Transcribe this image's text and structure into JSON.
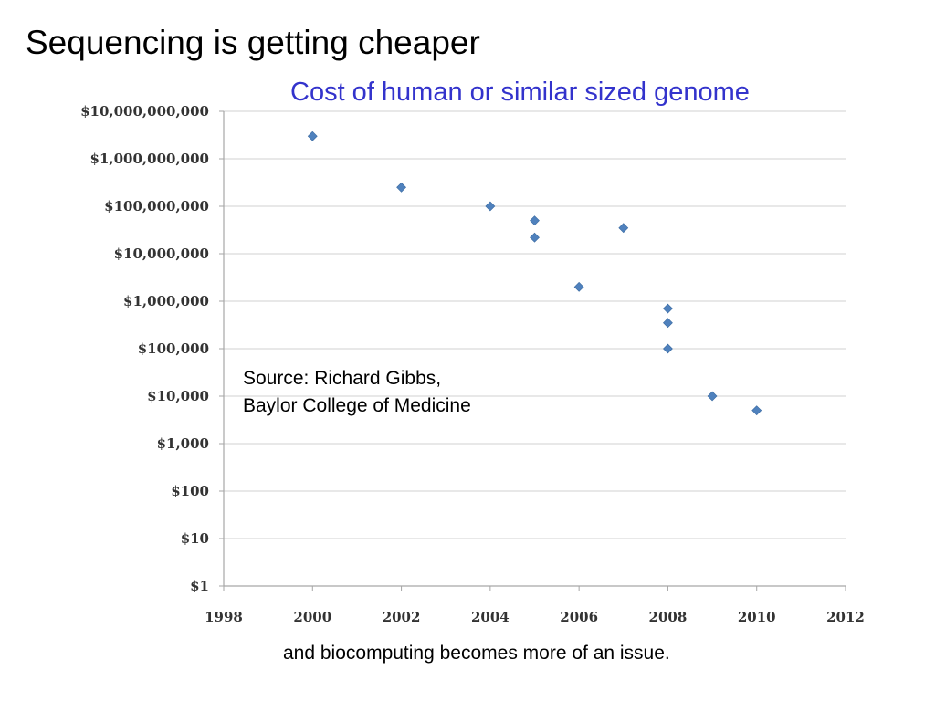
{
  "slide": {
    "title": "Sequencing is getting cheaper",
    "footer": "and biocomputing becomes more of an issue."
  },
  "source": {
    "line1": "Source: Richard Gibbs,",
    "line2": "Baylor College of Medicine"
  },
  "colors": {
    "chart_title": "#3333cc",
    "marker": "#4f81bd",
    "grid": "#d9d9d9",
    "axis": "#a6a6a6"
  },
  "chart_data": {
    "type": "scatter",
    "title": "Cost of human or similar sized genome",
    "xlabel": "",
    "ylabel": "",
    "xlim": [
      1998,
      2012
    ],
    "x_ticks": [
      1998,
      2000,
      2002,
      2004,
      2006,
      2008,
      2010,
      2012
    ],
    "yscale": "log",
    "ylim": [
      1,
      10000000000
    ],
    "y_ticks": [
      {
        "value": 10000000000,
        "label": "$10,000,000,000"
      },
      {
        "value": 1000000000,
        "label": "$1,000,000,000"
      },
      {
        "value": 100000000,
        "label": "$100,000,000"
      },
      {
        "value": 10000000,
        "label": "$10,000,000"
      },
      {
        "value": 1000000,
        "label": "$1,000,000"
      },
      {
        "value": 100000,
        "label": "$100,000"
      },
      {
        "value": 10000,
        "label": "$10,000"
      },
      {
        "value": 1000,
        "label": "$1,000"
      },
      {
        "value": 100,
        "label": "$100"
      },
      {
        "value": 10,
        "label": "$10"
      },
      {
        "value": 1,
        "label": "$1"
      }
    ],
    "grid": "horizontal",
    "marker": "diamond",
    "points": [
      {
        "x": 2000,
        "y": 3000000000
      },
      {
        "x": 2002,
        "y": 250000000
      },
      {
        "x": 2004,
        "y": 100000000
      },
      {
        "x": 2005,
        "y": 50000000
      },
      {
        "x": 2005,
        "y": 22000000
      },
      {
        "x": 2007,
        "y": 35000000
      },
      {
        "x": 2006,
        "y": 2000000
      },
      {
        "x": 2008,
        "y": 700000
      },
      {
        "x": 2008,
        "y": 350000
      },
      {
        "x": 2008,
        "y": 100000
      },
      {
        "x": 2009,
        "y": 10000
      },
      {
        "x": 2010,
        "y": 5000
      }
    ]
  }
}
